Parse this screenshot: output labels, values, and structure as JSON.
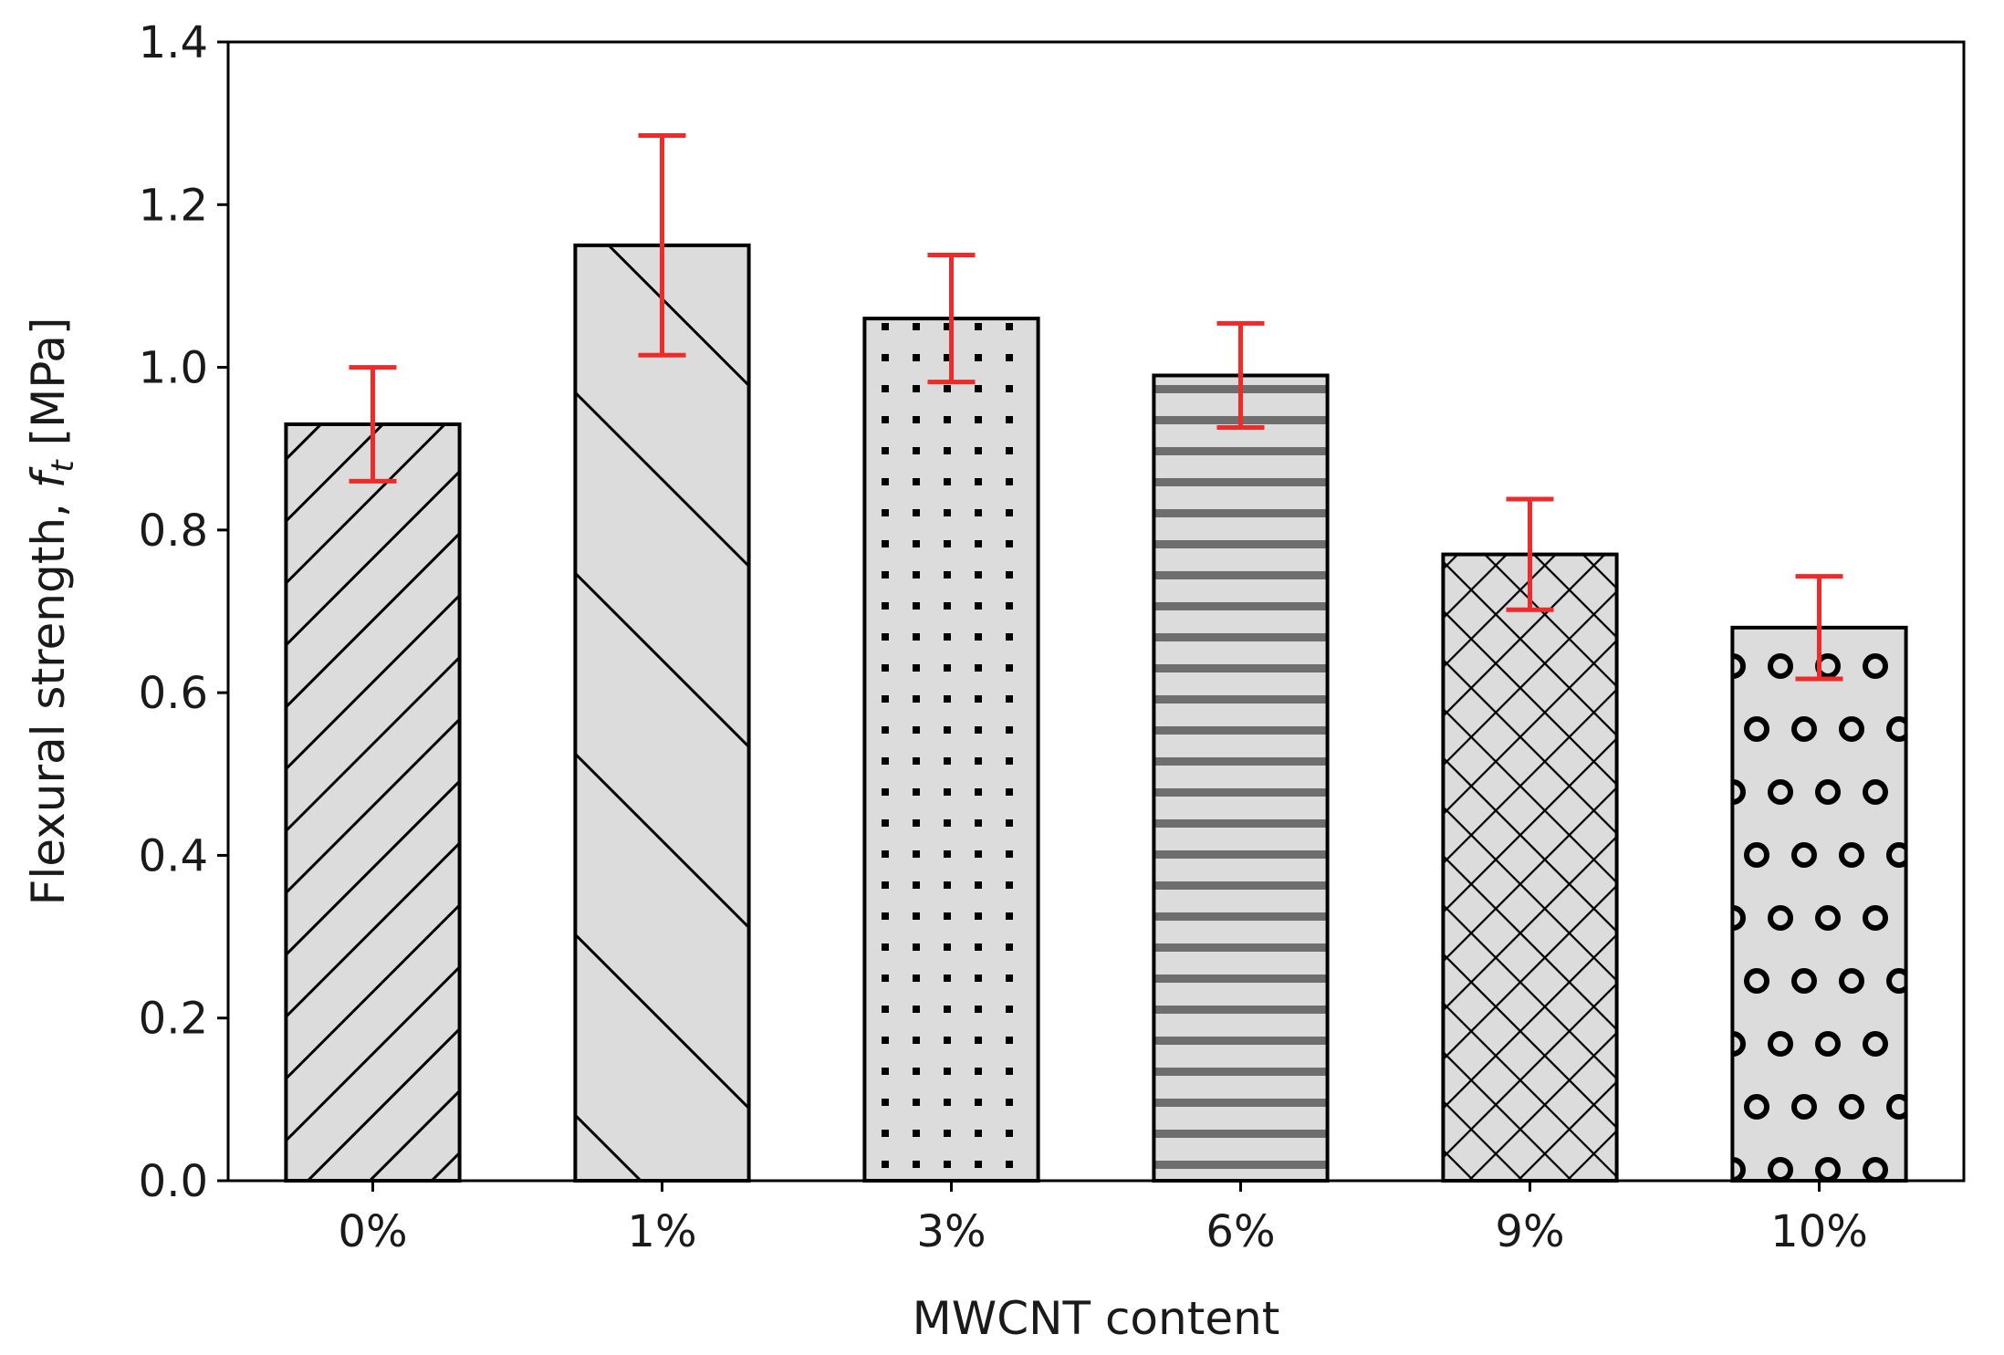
{
  "chart_data": {
    "type": "bar",
    "title": "",
    "xlabel": "MWCNT content",
    "ylabel": "Flexural strength, f_t [MPa]",
    "ylabel_main": "Flexural strength, ",
    "ylabel_symbol": "f",
    "ylabel_subscript": "t",
    "ylabel_unit": " [MPa]",
    "categories": [
      "0%",
      "1%",
      "3%",
      "6%",
      "9%",
      "10%"
    ],
    "values": [
      0.93,
      1.15,
      1.06,
      0.99,
      0.77,
      0.68
    ],
    "errors": [
      0.07,
      0.135,
      0.078,
      0.064,
      0.068,
      0.063
    ],
    "patterns": [
      "diag-forward",
      "diag-back",
      "dots",
      "hlines",
      "crosshatch",
      "circles"
    ],
    "ylim": [
      0.0,
      1.4
    ],
    "yticks": [
      "0.0",
      "0.2",
      "0.4",
      "0.6",
      "0.8",
      "1.0",
      "1.2",
      "1.4"
    ],
    "grid": false,
    "colors": {
      "bar_fill": "#dcdcdc",
      "bar_edge": "#000000",
      "error_bar": "#ee2a2a",
      "hline_pattern": "#6e6e6e"
    }
  }
}
